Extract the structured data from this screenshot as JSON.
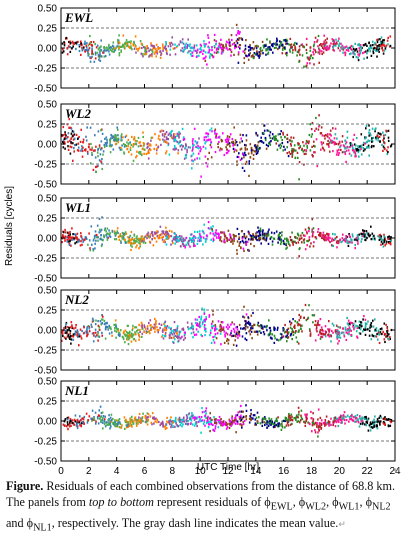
{
  "chart_data": {
    "type": "scatter",
    "xlabel": "UTC Time [hr]",
    "ylabel": "Residuals [cycles]",
    "xlim": [
      0,
      24
    ],
    "xticks": [
      0,
      2,
      4,
      6,
      8,
      10,
      12,
      14,
      16,
      18,
      20,
      22,
      24
    ],
    "mean_lines": [
      -0.25,
      0.25
    ],
    "grid": false,
    "panels": [
      {
        "label": "EWL",
        "ylim": [
          -0.5,
          0.5
        ],
        "yticks": [
          "-0.50",
          "-0.25",
          "0.00",
          "0.25",
          "0.50"
        ],
        "scale": 0.07
      },
      {
        "label": "WL2",
        "ylim": [
          -0.5,
          0.5
        ],
        "yticks": [
          "-0.50",
          "-0.25",
          "0.00",
          "0.25",
          "0.50"
        ],
        "scale": 0.11
      },
      {
        "label": "WL1",
        "ylim": [
          -0.5,
          0.5
        ],
        "yticks": [
          "-0.50",
          "-0.25",
          "0.00",
          "0.25",
          "0.50"
        ],
        "scale": 0.06
      },
      {
        "label": "NL2",
        "ylim": [
          -0.5,
          0.5
        ],
        "yticks": [
          "-0.50",
          "-0.25",
          "0.00",
          "0.25",
          "0.50"
        ],
        "scale": 0.08
      },
      {
        "label": "NL1",
        "ylim": [
          -0.5,
          0.5
        ],
        "yticks": [
          "-0.50",
          "-0.25",
          "0.00",
          "0.25",
          "0.50"
        ],
        "scale": 0.05
      }
    ],
    "series_colors": [
      "#000000",
      "#e41a1c",
      "#377eb8",
      "#4daf4a",
      "#ff7f00",
      "#984ea3",
      "#00d0d0",
      "#ff00ff",
      "#8b4513",
      "#00008b",
      "#228b22",
      "#b22222",
      "#ff1493",
      "#20b2aa"
    ],
    "mean_line_color": "#777777"
  },
  "caption": {
    "head": "Figure.",
    "text1": " Residuals of each combined observations from the distance of 68.8 km. The panels from ",
    "italic": "top to bottom",
    "text2": " represent residuals of ϕ",
    "sub1": "EWL",
    "text3": ", ϕ",
    "sub2": "WL2",
    "text4": ", ϕ",
    "sub3": "WL1",
    "text5": ", ϕ",
    "sub4": "NL2",
    "text6": " and ϕ",
    "sub5": "NL1",
    "text7": ", respectively. The gray dash line indicates the mean value.",
    "return_mark": "↵"
  }
}
